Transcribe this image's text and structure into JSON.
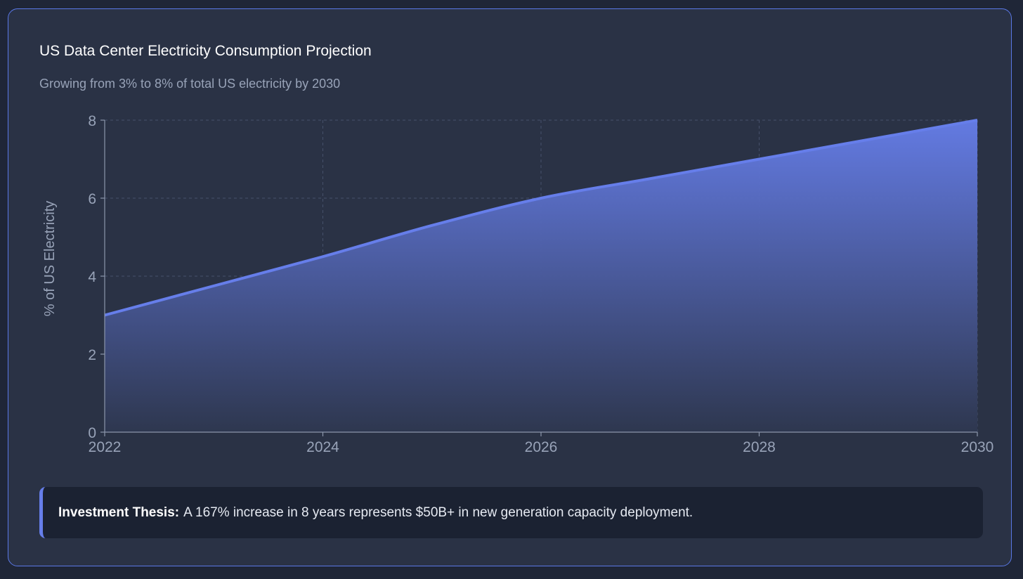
{
  "chart_data": {
    "type": "area",
    "title": "US Data Center Electricity Consumption Projection",
    "subtitle": "Growing from 3% to 8% of total US electricity by 2030",
    "xlabel": "",
    "ylabel": "% of US Electricity",
    "x": [
      2022,
      2023,
      2024,
      2025,
      2026,
      2027,
      2028,
      2029,
      2030
    ],
    "series": [
      {
        "name": "% of US Electricity",
        "values": [
          3.0,
          3.75,
          4.5,
          5.3,
          6.0,
          6.5,
          7.0,
          7.5,
          8.0
        ]
      }
    ],
    "xticks": [
      "2022",
      "2024",
      "2026",
      "2028",
      "2030"
    ],
    "yticks": [
      "0",
      "2",
      "4",
      "6",
      "8"
    ],
    "xlim": [
      2022,
      2030
    ],
    "ylim": [
      0,
      8
    ],
    "grid": true,
    "colors": {
      "line": "#667eea",
      "fill_top": "#667eea",
      "fill_bottom": "#2e374f",
      "grid": "#46506a",
      "axis": "#8c96ab",
      "tick_text": "#98a3b8"
    }
  },
  "thesis": {
    "label": "Investment Thesis:",
    "text": "A 167% increase in 8 years represents $50B+ in new generation capacity deployment."
  }
}
